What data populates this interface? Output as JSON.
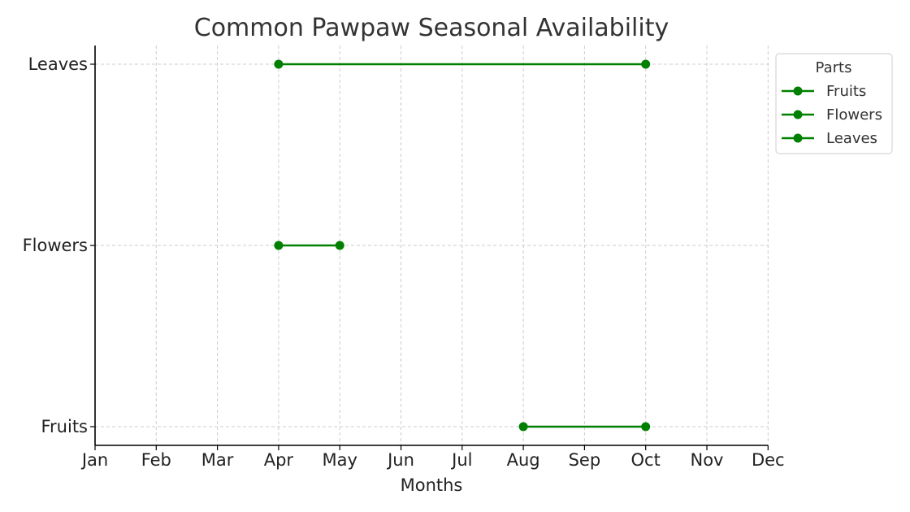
{
  "chart_data": {
    "type": "line",
    "title": "Common Pawpaw Seasonal Availability",
    "xlabel": "Months",
    "ylabel": "",
    "x_categories": [
      "Jan",
      "Feb",
      "Mar",
      "Apr",
      "May",
      "Jun",
      "Jul",
      "Aug",
      "Sep",
      "Oct",
      "Nov",
      "Dec"
    ],
    "y_categories": [
      "Fruits",
      "Flowers",
      "Leaves"
    ],
    "xlim": [
      "Jan",
      "Dec"
    ],
    "grid": true,
    "legend": {
      "title": "Parts",
      "placement": "right, outside plot (top)"
    },
    "series": [
      {
        "name": "Fruits",
        "y": "Fruits",
        "x": [
          "Aug",
          "Oct"
        ],
        "color": "#008000"
      },
      {
        "name": "Flowers",
        "y": "Flowers",
        "x": [
          "Apr",
          "May"
        ],
        "color": "#008000"
      },
      {
        "name": "Leaves",
        "y": "Leaves",
        "x": [
          "Apr",
          "Oct"
        ],
        "color": "#008000"
      }
    ]
  }
}
